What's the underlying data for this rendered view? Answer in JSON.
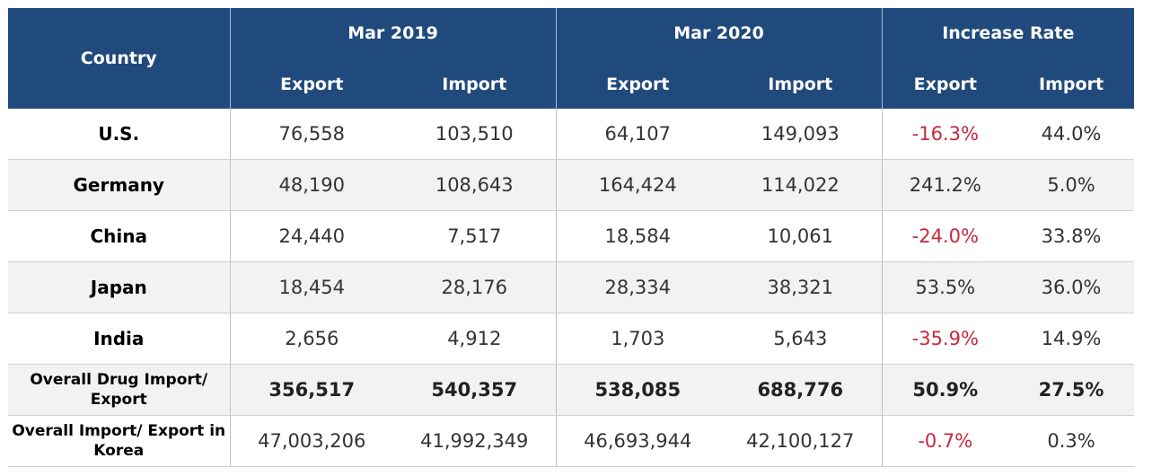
{
  "chart_data": {
    "type": "table",
    "header": {
      "country": "Country",
      "groups": [
        "Mar 2019",
        "Mar 2020",
        "Increase Rate"
      ],
      "sub": [
        "Export",
        "Import",
        "Export",
        "Import",
        "Export",
        "Import"
      ]
    },
    "rows": [
      {
        "label": "U.S.",
        "values": [
          "76,558",
          "103,510",
          "64,107",
          "149,093",
          "-16.3%",
          "44.0%"
        ]
      },
      {
        "label": "Germany",
        "values": [
          "48,190",
          "108,643",
          "164,424",
          "114,022",
          "241.2%",
          "5.0%"
        ]
      },
      {
        "label": "China",
        "values": [
          "24,440",
          "7,517",
          "18,584",
          "10,061",
          "-24.0%",
          "33.8%"
        ]
      },
      {
        "label": "Japan",
        "values": [
          "18,454",
          "28,176",
          "28,334",
          "38,321",
          "53.5%",
          "36.0%"
        ]
      },
      {
        "label": "India",
        "values": [
          "2,656",
          "4,912",
          "1,703",
          "5,643",
          "-35.9%",
          "14.9%"
        ]
      },
      {
        "label": "Overall Drug Import/ Export",
        "values": [
          "356,517",
          "540,357",
          "538,085",
          "688,776",
          "50.9%",
          "27.5%"
        ]
      },
      {
        "label": "Overall Import/ Export in Korea",
        "values": [
          "47,003,206",
          "41,992,349",
          "46,693,944",
          "42,100,127",
          "-0.7%",
          "0.3%"
        ]
      }
    ],
    "colors": {
      "header": "#214a7c",
      "negative": "#c8283a",
      "alt_row": "#f2f2f2"
    }
  }
}
